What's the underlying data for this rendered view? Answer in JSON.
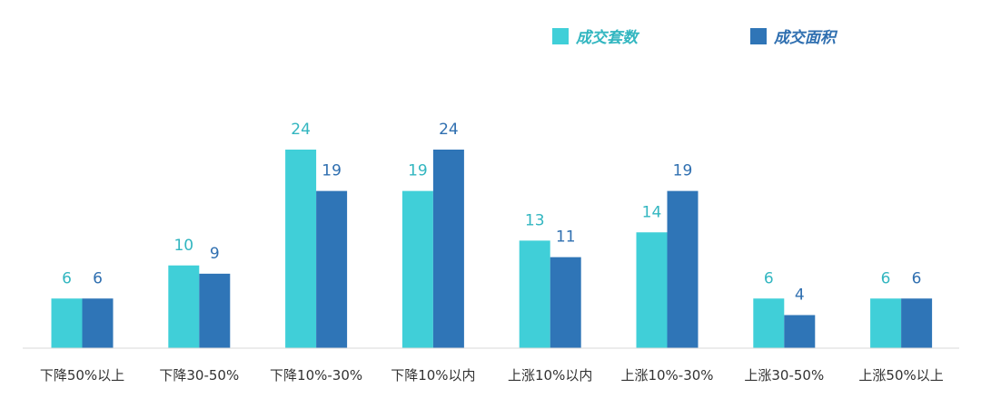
{
  "chart_data": {
    "type": "bar",
    "title": "",
    "xlabel": "",
    "ylabel": "",
    "categories": [
      "下降50%以上",
      "下降30-50%",
      "下降10%-30%",
      "下降10%以内",
      "上涨10%以内",
      "上涨10%-30%",
      "上涨30-50%",
      "上涨50%以上"
    ],
    "series": [
      {
        "name": "成交套数",
        "color": "#40cfd8",
        "label_color": "#32b6c0",
        "values": [
          6,
          10,
          24,
          19,
          13,
          14,
          6,
          6
        ]
      },
      {
        "name": "成交面积",
        "color": "#2f75b7",
        "label_color": "#2f6fb0",
        "values": [
          6,
          9,
          19,
          24,
          11,
          19,
          4,
          6
        ]
      }
    ],
    "ylim": [
      0,
      24
    ],
    "grid": false,
    "legend_position": "top-right",
    "data_labels": true
  }
}
